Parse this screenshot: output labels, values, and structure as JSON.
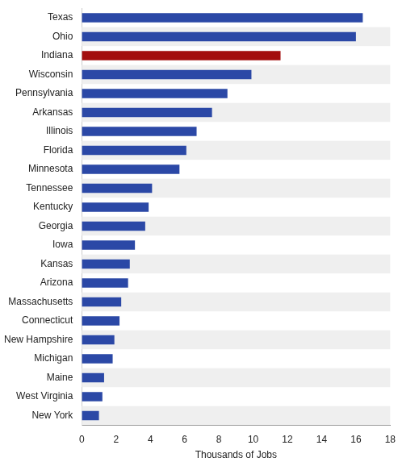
{
  "chart_data": {
    "type": "bar",
    "orientation": "horizontal",
    "categories": [
      "Texas",
      "Ohio",
      "Indiana",
      "Wisconsin",
      "Pennsylvania",
      "Arkansas",
      "Illinois",
      "Florida",
      "Minnesota",
      "Tennessee",
      "Kentucky",
      "Georgia",
      "Iowa",
      "Kansas",
      "Arizona",
      "Massachusetts",
      "Connecticut",
      "New Hampshire",
      "Michigan",
      "Maine",
      "West Virginia",
      "New York"
    ],
    "values": [
      16.4,
      16.0,
      11.6,
      9.9,
      8.5,
      7.6,
      6.7,
      6.1,
      5.7,
      4.1,
      3.9,
      3.7,
      3.1,
      2.8,
      2.7,
      2.3,
      2.2,
      1.9,
      1.8,
      1.3,
      1.2,
      1.0
    ],
    "colors": [
      "#2b48a6",
      "#2b48a6",
      "#a30d0d",
      "#2b48a6",
      "#2b48a6",
      "#2b48a6",
      "#2b48a6",
      "#2b48a6",
      "#2b48a6",
      "#2b48a6",
      "#2b48a6",
      "#2b48a6",
      "#2b48a6",
      "#2b48a6",
      "#2b48a6",
      "#2b48a6",
      "#2b48a6",
      "#2b48a6",
      "#2b48a6",
      "#2b48a6",
      "#2b48a6",
      "#2b48a6"
    ],
    "x_label": "Thousands of Jobs",
    "xlim": [
      0,
      18
    ],
    "xticks": [
      0,
      2,
      4,
      6,
      8,
      10,
      12,
      14,
      16,
      18
    ],
    "grid": false
  }
}
